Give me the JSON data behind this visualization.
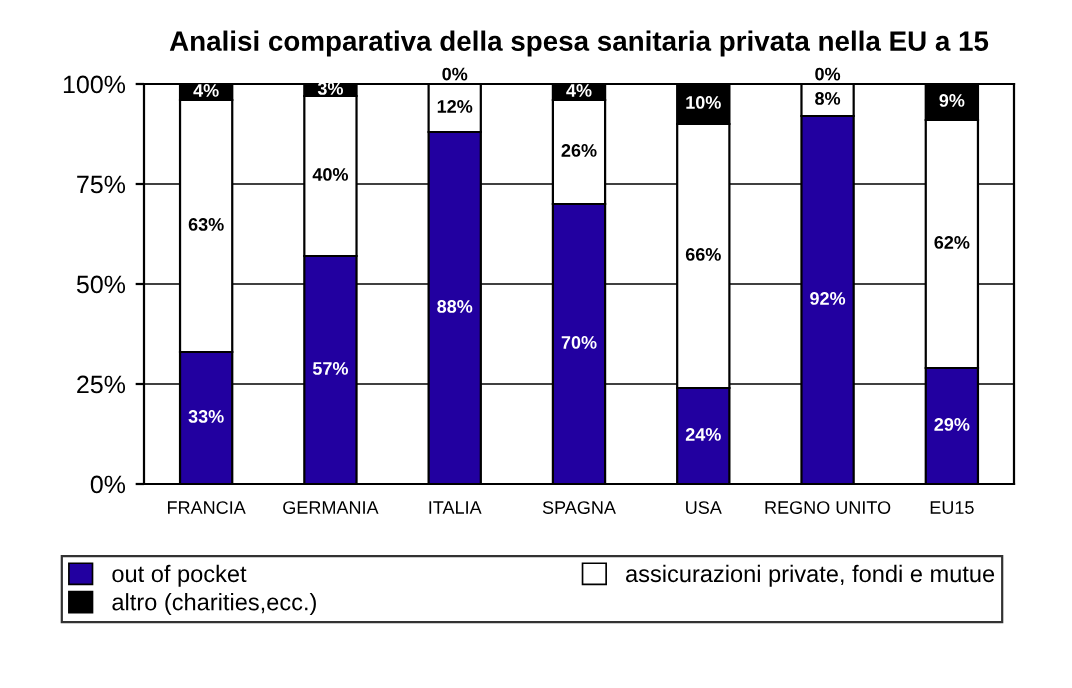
{
  "chart_data": {
    "type": "bar",
    "stacked": true,
    "title": "Analisi comparativa della spesa sanitaria privata nella EU a 15",
    "categories": [
      "FRANCIA",
      "GERMANIA",
      "ITALIA",
      "SPAGNA",
      "USA",
      "REGNO UNITO",
      "EU15"
    ],
    "series": [
      {
        "name": "out of pocket",
        "color": "#2200a0",
        "values": [
          33,
          57,
          88,
          70,
          24,
          92,
          29
        ],
        "value_labels": [
          "33%",
          "57%",
          "88%",
          "70%",
          "24%",
          "92%",
          "29%"
        ]
      },
      {
        "name": "assicurazioni private, fondi e mutue",
        "color": "#ffffff",
        "values": [
          63,
          40,
          12,
          26,
          66,
          8,
          62
        ],
        "value_labels": [
          "63%",
          "40%",
          "12%",
          "26%",
          "66%",
          "8%",
          "62%"
        ]
      },
      {
        "name": "altro (charities,ecc.)",
        "color": "#000000",
        "values": [
          4,
          3,
          0,
          4,
          10,
          0,
          9
        ],
        "value_labels": [
          "4%",
          "3%",
          "0%",
          "4%",
          "10%",
          "0%",
          "9%"
        ]
      }
    ],
    "ylim": [
      0,
      100
    ],
    "yticks": [
      {
        "value": 0,
        "label": "0%"
      },
      {
        "value": 25,
        "label": "25%"
      },
      {
        "value": 50,
        "label": "50%"
      },
      {
        "value": 75,
        "label": "75%"
      },
      {
        "value": 100,
        "label": "100%"
      }
    ],
    "grid": "y",
    "legend": "bottom"
  }
}
